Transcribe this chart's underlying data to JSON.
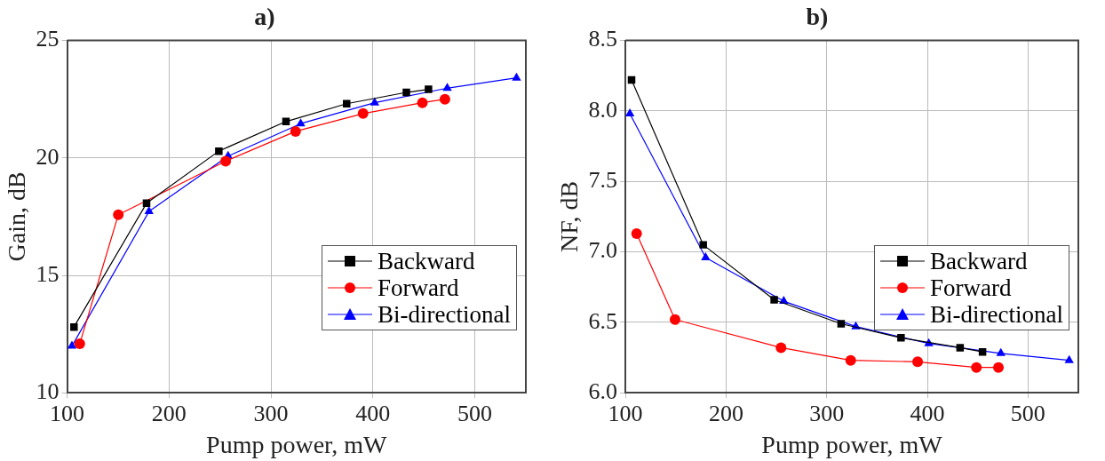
{
  "chart_data": [
    {
      "type": "line",
      "title": "a)",
      "xlabel": "Pump power, mW",
      "ylabel": "Gain, dB",
      "xlim": [
        100,
        550
      ],
      "xticks": [
        100,
        200,
        300,
        400,
        500
      ],
      "ylim": [
        10,
        25
      ],
      "yticks": [
        10,
        15,
        20,
        25
      ],
      "grid": true,
      "legend": "lower right",
      "series": [
        {
          "name": "Backward",
          "color": "#000000",
          "marker": "square",
          "x": [
            106.7,
            177.9,
            248.8,
            314.7,
            374.2,
            432.8,
            454.5
          ],
          "values": [
            12.8,
            18.07,
            20.29,
            21.55,
            22.31,
            22.79,
            22.92
          ]
        },
        {
          "name": "Forward",
          "color": "#ff0000",
          "marker": "circle",
          "x": [
            112.4,
            150.2,
            255.5,
            324.1,
            390.3,
            448.5,
            470.6
          ],
          "values": [
            12.09,
            17.58,
            19.86,
            21.13,
            21.89,
            22.35,
            22.5
          ]
        },
        {
          "name": "Bi-directional",
          "color": "#0000ff",
          "marker": "triangle",
          "x": [
            104.7,
            180.3,
            257.9,
            329.1,
            401.7,
            472.9,
            540.8
          ],
          "values": [
            11.99,
            17.72,
            20.08,
            21.46,
            22.35,
            22.97,
            23.41
          ]
        }
      ]
    },
    {
      "type": "line",
      "title": "b)",
      "xlabel": "Pump power, mW",
      "ylabel": "NF, dB",
      "xlim": [
        100,
        550
      ],
      "xticks": [
        100,
        200,
        300,
        400,
        500
      ],
      "ylim": [
        6.0,
        8.5
      ],
      "yticks": [
        {
          "value": 6.0,
          "label": "6.0"
        },
        {
          "value": 6.5,
          "label": "6.5"
        },
        {
          "value": 7.0,
          "label": "7.0"
        },
        {
          "value": 7.5,
          "label": "7.5"
        },
        {
          "value": 8.0,
          "label": "8.0"
        },
        {
          "value": 8.5,
          "label": "8.5"
        }
      ],
      "grid": true,
      "legend": "lower right",
      "series": [
        {
          "name": "Backward",
          "color": "#000000",
          "marker": "square",
          "x": [
            106.1,
            177.3,
            247.8,
            314.3,
            373.8,
            432.5,
            454.8
          ],
          "values": [
            8.22,
            7.05,
            6.66,
            6.49,
            6.39,
            6.32,
            6.29
          ]
        },
        {
          "name": "Forward",
          "color": "#ff0000",
          "marker": "circle",
          "x": [
            111.1,
            149.3,
            254.6,
            323.8,
            390.3,
            448.7,
            470.6
          ],
          "values": [
            7.13,
            6.52,
            6.32,
            6.23,
            6.22,
            6.18,
            6.18
          ]
        },
        {
          "name": "Bi-directional",
          "color": "#0000ff",
          "marker": "triangle",
          "x": [
            104.4,
            179.7,
            257.3,
            328.9,
            401.4,
            473.0,
            540.9
          ],
          "values": [
            7.98,
            6.96,
            6.65,
            6.47,
            6.35,
            6.28,
            6.23
          ]
        }
      ]
    }
  ]
}
